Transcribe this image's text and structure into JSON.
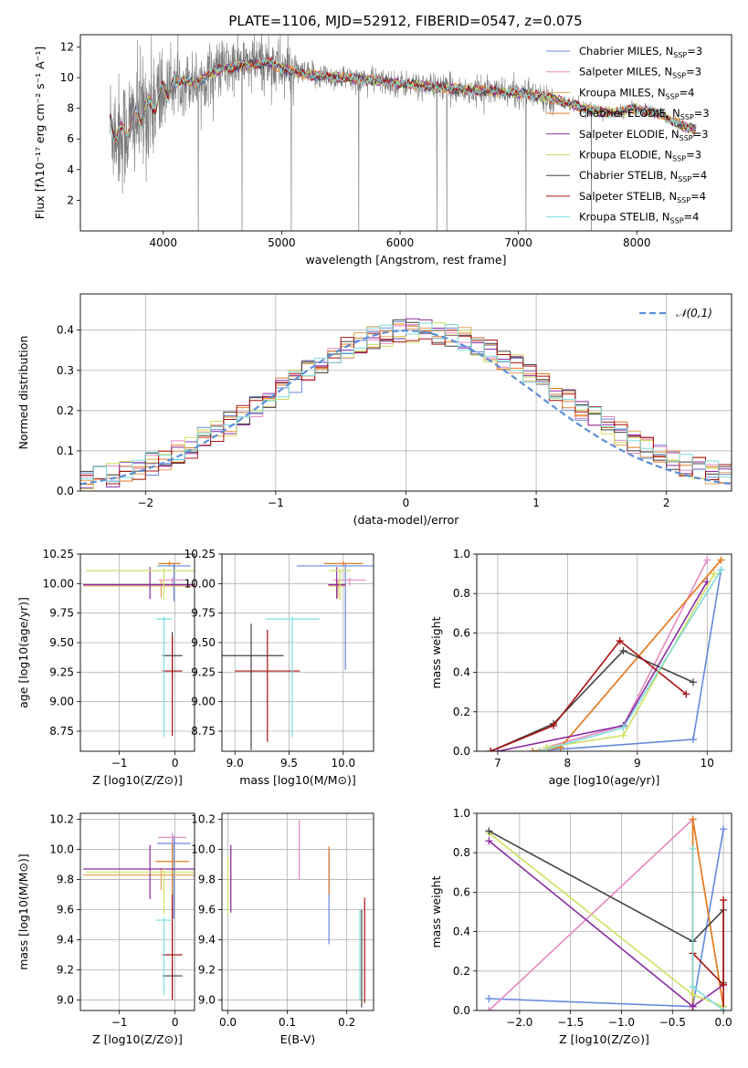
{
  "figure": {
    "title": "PLATE=1106, MJD=52912, FIBERID=0547, z=0.075",
    "colors": {
      "Chabrier MILES": "#6688dd",
      "Salpeter MILES": "#e589c2",
      "Kroupa MILES": "#e6a35a",
      "Chabrier ELODIE": "#e57a22",
      "Salpeter ELODIE": "#8a2ba0",
      "Kroupa ELODIE": "#cfe060",
      "Chabrier STELIB": "#444444",
      "Salpeter STELIB": "#aa1111",
      "Kroupa STELIB": "#7fdcdc",
      "data": "#7a7a7a",
      "normal": "#5b8fd6"
    }
  },
  "chart_data": [
    {
      "id": "spectrum",
      "type": "line",
      "xlabel": "wavelength [Angstrom, rest frame]",
      "ylabel": "Flux [fλ10⁻¹⁷ erg cm⁻² s⁻¹ A⁻¹]",
      "xlim": [
        3300,
        8800
      ],
      "ylim": [
        0,
        12.8
      ],
      "xticks": [
        4000,
        5000,
        6000,
        7000,
        8000
      ],
      "yticks": [
        2,
        4,
        6,
        8,
        10,
        12
      ],
      "legend": [
        {
          "model": "Chabrier MILES",
          "label": "Chabrier MILES, N_SSP=3"
        },
        {
          "model": "Salpeter MILES",
          "label": "Salpeter MILES, N_SSP=3"
        },
        {
          "model": "Kroupa MILES",
          "label": "Kroupa MILES, N_SSP=4"
        },
        {
          "model": "Chabrier ELODIE",
          "label": "Chabrier ELODIE, N_SSP=3"
        },
        {
          "model": "Salpeter ELODIE",
          "label": "Salpeter ELODIE, N_SSP=3"
        },
        {
          "model": "Kroupa ELODIE",
          "label": "Kroupa ELODIE, N_SSP=3"
        },
        {
          "model": "Chabrier STELIB",
          "label": "Chabrier STELIB, N_SSP=4"
        },
        {
          "model": "Salpeter STELIB",
          "label": "Salpeter STELIB, N_SSP=4"
        },
        {
          "model": "Kroupa STELIB",
          "label": "Kroupa STELIB, N_SSP=4"
        }
      ],
      "legend_position": "right",
      "continuum": [
        [
          3550,
          6.9
        ],
        [
          3650,
          6.2
        ],
        [
          3750,
          7.2
        ],
        [
          3850,
          7.8
        ],
        [
          3950,
          8.6
        ],
        [
          4050,
          9.4
        ],
        [
          4150,
          9.8
        ],
        [
          4300,
          9.7
        ],
        [
          4400,
          10.3
        ],
        [
          4500,
          10.6
        ],
        [
          4700,
          10.8
        ],
        [
          4900,
          11.0
        ],
        [
          5000,
          10.6
        ],
        [
          5200,
          10.2
        ],
        [
          5500,
          10.0
        ],
        [
          5800,
          9.8
        ],
        [
          6000,
          9.6
        ],
        [
          6300,
          9.4
        ],
        [
          6562,
          9.2
        ],
        [
          6800,
          9.1
        ],
        [
          7000,
          9.0
        ],
        [
          7200,
          8.8
        ],
        [
          7400,
          8.4
        ],
        [
          7600,
          7.9
        ],
        [
          7800,
          7.7
        ],
        [
          8000,
          8.0
        ],
        [
          8200,
          7.6
        ],
        [
          8400,
          6.8
        ],
        [
          8500,
          6.6
        ]
      ],
      "grid": false
    },
    {
      "id": "residuals",
      "type": "step",
      "xlabel": "(data-model)/error",
      "ylabel": "Normed distribution",
      "xlim": [
        -2.5,
        2.5
      ],
      "ylim": [
        0,
        0.49
      ],
      "xticks": [
        -2,
        -1,
        0,
        1,
        2
      ],
      "yticks": [
        0.0,
        0.1,
        0.2,
        0.3,
        0.4
      ],
      "legend": "𝒩(0,1)",
      "legend_position": "upper right",
      "bin_width": 0.1,
      "grid": true
    },
    {
      "id": "age-vs-Z",
      "type": "errorbar",
      "xlabel": "Z [log10(Z/Z⊙)]",
      "ylabel": "age  [log10(age/yr)]",
      "xlim": [
        -1.7,
        0.35
      ],
      "ylim": [
        8.58,
        10.25
      ],
      "xticks": [
        -1,
        0
      ],
      "yticks": [
        8.75,
        9.0,
        9.25,
        9.5,
        9.75,
        10.0,
        10.25
      ],
      "points": [
        {
          "model": "Chabrier MILES",
          "x": -0.02,
          "y": 10.15,
          "xerr": 0.3,
          "yerr": [
            0.3,
            0.02
          ]
        },
        {
          "model": "Salpeter MILES",
          "x": -0.05,
          "y": 10.03,
          "xerr": 0.25,
          "yerr": [
            0.05,
            0.02
          ]
        },
        {
          "model": "Kroupa MILES",
          "x": -0.25,
          "y": 9.98,
          "xerr": 1.4,
          "yerr": [
            0.1,
            0.05
          ]
        },
        {
          "model": "Chabrier ELODIE",
          "x": -0.1,
          "y": 10.17,
          "xerr": 0.2,
          "yerr": [
            0.02,
            0.02
          ]
        },
        {
          "model": "Salpeter ELODIE",
          "x": -0.45,
          "y": 9.99,
          "xerr": 1.2,
          "yerr": [
            0.12,
            0.15
          ]
        },
        {
          "model": "Kroupa ELODIE",
          "x": -0.2,
          "y": 10.11,
          "xerr": 1.4,
          "yerr": [
            0.25,
            0.02
          ]
        },
        {
          "model": "Chabrier STELIB",
          "x": -0.05,
          "y": 9.39,
          "xerr": 0.18,
          "yerr": [
            0.2,
            0.2
          ]
        },
        {
          "model": "Salpeter STELIB",
          "x": -0.05,
          "y": 9.26,
          "xerr": 0.18,
          "yerr": [
            0.55,
            0.3
          ]
        },
        {
          "model": "Kroupa STELIB",
          "x": -0.2,
          "y": 9.7,
          "xerr": 0.15,
          "yerr": [
            1.0,
            0.02
          ]
        }
      ],
      "grid": true
    },
    {
      "id": "age-vs-mass",
      "type": "errorbar",
      "xlabel": "mass [log10(M/M⊙)]",
      "ylabel": "",
      "xlim": [
        8.88,
        10.28
      ],
      "ylim": [
        8.58,
        10.25
      ],
      "xticks": [
        9.0,
        9.5,
        10.0
      ],
      "yticks": [
        8.75,
        9.0,
        9.25,
        9.5,
        9.75,
        10.0,
        10.25
      ],
      "points": [
        {
          "model": "Chabrier MILES",
          "x": 10.02,
          "y": 10.15,
          "xerr": 0.45,
          "yerr": [
            0.88,
            0.02
          ]
        },
        {
          "model": "Salpeter MILES",
          "x": 10.06,
          "y": 10.03,
          "xerr": 0.15,
          "yerr": [
            0.05,
            0.02
          ]
        },
        {
          "model": "Kroupa MILES",
          "x": 9.95,
          "y": 9.98,
          "xerr": 0.08,
          "yerr": [
            0.1,
            0.05
          ]
        },
        {
          "model": "Chabrier ELODIE",
          "x": 10.0,
          "y": 10.17,
          "xerr": 0.18,
          "yerr": [
            0.02,
            0.02
          ]
        },
        {
          "model": "Salpeter ELODIE",
          "x": 9.94,
          "y": 9.99,
          "xerr": 0.08,
          "yerr": [
            0.12,
            0.15
          ]
        },
        {
          "model": "Kroupa ELODIE",
          "x": 9.97,
          "y": 10.11,
          "xerr": 0.1,
          "yerr": [
            0.25,
            0.02
          ]
        },
        {
          "model": "Chabrier STELIB",
          "x": 9.15,
          "y": 9.39,
          "xerr": 0.3,
          "yerr": [
            0.8,
            0.27
          ]
        },
        {
          "model": "Salpeter STELIB",
          "x": 9.3,
          "y": 9.26,
          "xerr": 0.3,
          "yerr": [
            0.6,
            0.35
          ]
        },
        {
          "model": "Kroupa STELIB",
          "x": 9.53,
          "y": 9.7,
          "xerr": 0.25,
          "yerr": [
            1.0,
            0.02
          ]
        }
      ],
      "grid": true
    },
    {
      "id": "weight-vs-age",
      "type": "line",
      "xlabel": "age  [log10(age/yr)]",
      "ylabel": "mass weight",
      "xlim": [
        6.7,
        10.35
      ],
      "ylim": [
        0,
        1
      ],
      "xticks": [
        7,
        8,
        9,
        10
      ],
      "yticks": [
        0.0,
        0.2,
        0.4,
        0.6,
        0.8,
        1.0
      ],
      "series": [
        {
          "model": "Chabrier MILES",
          "points": [
            [
              7.5,
              0.0
            ],
            [
              9.8,
              0.06
            ],
            [
              10.2,
              0.92
            ]
          ]
        },
        {
          "model": "Salpeter MILES",
          "points": [
            [
              7.7,
              0.02
            ],
            [
              8.8,
              0.13
            ],
            [
              10.0,
              0.97
            ]
          ]
        },
        {
          "model": "Kroupa MILES",
          "points": [
            [
              7.6,
              0.0
            ],
            [
              7.9,
              0.02
            ],
            [
              10.2,
              0.97
            ]
          ]
        },
        {
          "model": "Chabrier ELODIE",
          "points": [
            [
              7.5,
              0.0
            ],
            [
              7.9,
              0.02
            ],
            [
              10.2,
              0.97
            ]
          ]
        },
        {
          "model": "Salpeter ELODIE",
          "points": [
            [
              7.0,
              0.0
            ],
            [
              8.8,
              0.13
            ],
            [
              10.0,
              0.86
            ]
          ]
        },
        {
          "model": "Kroupa ELODIE",
          "points": [
            [
              7.7,
              0.02
            ],
            [
              8.8,
              0.08
            ],
            [
              10.1,
              0.9
            ]
          ]
        },
        {
          "model": "Chabrier STELIB",
          "points": [
            [
              6.9,
              0.0
            ],
            [
              7.8,
              0.14
            ],
            [
              8.8,
              0.51
            ],
            [
              9.8,
              0.35
            ]
          ]
        },
        {
          "model": "Salpeter STELIB",
          "points": [
            [
              6.9,
              0.0
            ],
            [
              7.8,
              0.13
            ],
            [
              8.75,
              0.56
            ],
            [
              9.7,
              0.29
            ]
          ]
        },
        {
          "model": "Kroupa STELIB",
          "points": [
            [
              7.6,
              0.0
            ],
            [
              8.8,
              0.12
            ],
            [
              10.2,
              0.92
            ]
          ]
        }
      ],
      "grid": true
    },
    {
      "id": "mass-vs-Z",
      "type": "errorbar",
      "xlabel": "Z [log10(Z/Z⊙)]",
      "ylabel": "mass [log10(M/M⊙)]",
      "xlim": [
        -1.7,
        0.35
      ],
      "ylim": [
        8.93,
        10.24
      ],
      "xticks": [
        -1,
        0
      ],
      "yticks": [
        9.0,
        9.2,
        9.4,
        9.6,
        9.8,
        10.0,
        10.2
      ],
      "points": [
        {
          "model": "Chabrier MILES",
          "x": -0.02,
          "y": 10.04,
          "xerr": 0.3,
          "yerr": [
            0.5,
            0.05
          ]
        },
        {
          "model": "Salpeter MILES",
          "x": -0.05,
          "y": 10.08,
          "xerr": 0.25,
          "yerr": [
            0.1,
            0.03
          ]
        },
        {
          "model": "Kroupa MILES",
          "x": -0.25,
          "y": 9.83,
          "xerr": 1.4,
          "yerr": [
            0.1,
            0.05
          ]
        },
        {
          "model": "Chabrier ELODIE",
          "x": -0.05,
          "y": 9.92,
          "xerr": 0.3,
          "yerr": [
            0.25,
            0.12
          ]
        },
        {
          "model": "Salpeter ELODIE",
          "x": -0.45,
          "y": 9.87,
          "xerr": 1.2,
          "yerr": [
            0.2,
            0.16
          ]
        },
        {
          "model": "Kroupa ELODIE",
          "x": -0.2,
          "y": 9.85,
          "xerr": 1.4,
          "yerr": [
            0.28,
            0.02
          ]
        },
        {
          "model": "Chabrier STELIB",
          "x": -0.05,
          "y": 9.16,
          "xerr": 0.18,
          "yerr": [
            0.15,
            0.45
          ]
        },
        {
          "model": "Salpeter STELIB",
          "x": -0.05,
          "y": 9.3,
          "xerr": 0.18,
          "yerr": [
            0.3,
            0.4
          ]
        },
        {
          "model": "Kroupa STELIB",
          "x": -0.2,
          "y": 9.53,
          "xerr": 0.15,
          "yerr": [
            0.5,
            0.02
          ]
        }
      ],
      "grid": true
    },
    {
      "id": "mass-vs-ebv",
      "type": "errorbar",
      "xlabel": "E(B-V)",
      "ylabel": "",
      "xlim": [
        -0.01,
        0.245
      ],
      "ylim": [
        8.93,
        10.24
      ],
      "xticks": [
        0.0,
        0.1,
        0.2
      ],
      "yticks": [
        9.0,
        9.2,
        9.4,
        9.6,
        9.8,
        10.0,
        10.2
      ],
      "points": [
        {
          "model": "Chabrier MILES",
          "x": 0.17,
          "y": 9.65,
          "yerr": [
            0.28,
            0.35
          ]
        },
        {
          "model": "Salpeter MILES",
          "x": 0.12,
          "y": 10.0,
          "yerr": [
            0.2,
            0.2
          ]
        },
        {
          "model": "Kroupa MILES",
          "x": 0.005,
          "y": 9.8,
          "yerr": [
            0.2,
            0.2
          ]
        },
        {
          "model": "Chabrier ELODIE",
          "x": 0.17,
          "y": 9.9,
          "yerr": [
            0.2,
            0.12
          ]
        },
        {
          "model": "Salpeter ELODIE",
          "x": 0.005,
          "y": 9.88,
          "yerr": [
            0.3,
            0.15
          ]
        },
        {
          "model": "Kroupa ELODIE",
          "x": 0.0,
          "y": 9.65,
          "yerr": [
            0.08,
            0.3
          ]
        },
        {
          "model": "Chabrier STELIB",
          "x": 0.225,
          "y": 9.3,
          "yerr": [
            0.35,
            0.3
          ]
        },
        {
          "model": "Salpeter STELIB",
          "x": 0.23,
          "y": 9.33,
          "yerr": [
            0.35,
            0.35
          ]
        },
        {
          "model": "Kroupa STELIB",
          "x": 0.222,
          "y": 9.3,
          "yerr": [
            0.3,
            0.3
          ]
        }
      ],
      "grid": true
    },
    {
      "id": "weight-vs-Z",
      "type": "line",
      "xlabel": "Z [log10(Z/Z⊙)]",
      "ylabel": "mass weight",
      "xlim": [
        -2.42,
        0.08
      ],
      "ylim": [
        0,
        1
      ],
      "xticks": [
        -2.0,
        -1.5,
        -1.0,
        -0.5,
        0.0
      ],
      "yticks": [
        0.0,
        0.2,
        0.4,
        0.6,
        0.8,
        1.0
      ],
      "series": [
        {
          "model": "Chabrier MILES",
          "points": [
            [
              -2.3,
              0.06
            ],
            [
              -0.3,
              0.02
            ],
            [
              0.0,
              0.92
            ]
          ]
        },
        {
          "model": "Salpeter MILES",
          "points": [
            [
              -2.3,
              0.0
            ],
            [
              -0.3,
              0.97
            ],
            [
              -0.3,
              0.02
            ]
          ]
        },
        {
          "model": "Kroupa MILES",
          "points": [
            [
              -0.3,
              0.0
            ],
            [
              -0.3,
              0.97
            ],
            [
              0.0,
              0.02
            ]
          ]
        },
        {
          "model": "Chabrier ELODIE",
          "points": [
            [
              -0.3,
              0.0
            ],
            [
              -0.3,
              0.97
            ],
            [
              0.0,
              0.02
            ]
          ]
        },
        {
          "model": "Salpeter ELODIE",
          "points": [
            [
              -2.3,
              0.86
            ],
            [
              -0.3,
              0.02
            ],
            [
              0.0,
              0.13
            ]
          ]
        },
        {
          "model": "Kroupa ELODIE",
          "points": [
            [
              -2.3,
              0.9
            ],
            [
              -0.3,
              0.08
            ],
            [
              0.0,
              0.02
            ]
          ]
        },
        {
          "model": "Chabrier STELIB",
          "points": [
            [
              -2.3,
              0.91
            ],
            [
              -0.3,
              0.35
            ],
            [
              0.0,
              0.51
            ],
            [
              0.0,
              0.14
            ]
          ]
        },
        {
          "model": "Salpeter STELIB",
          "points": [
            [
              -0.3,
              0.29
            ],
            [
              0.0,
              0.13
            ],
            [
              0.0,
              0.56
            ],
            [
              0.0,
              0.0
            ]
          ]
        },
        {
          "model": "Kroupa STELIB",
          "points": [
            [
              -0.3,
              0.82
            ],
            [
              -0.3,
              0.12
            ],
            [
              0.0,
              0.0
            ]
          ]
        }
      ],
      "grid": true
    }
  ]
}
